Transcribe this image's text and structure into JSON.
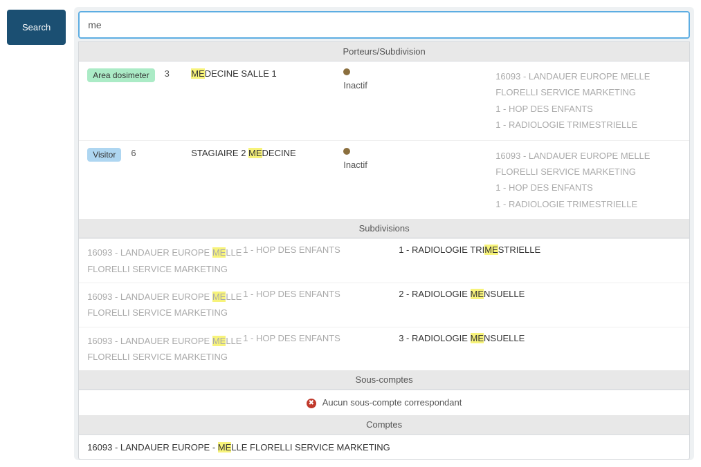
{
  "search": {
    "button_label": "Search",
    "input_value": "me"
  },
  "sections": {
    "porteurs_header": "Porteurs/Subdivision",
    "subdivisions_header": "Subdivisions",
    "souscomptes_header": "Sous-comptes",
    "comptes_header": "Comptes"
  },
  "porteurs": [
    {
      "badge_label": "Area dosimeter",
      "badge_class": "badge-green",
      "badge_num": "3",
      "name_parts": {
        "hl": "ME",
        "rest": "DECINE SALLE 1"
      },
      "status": "Inactif",
      "path": [
        "16093 - LANDAUER EUROPE MELLE FLORELLI SERVICE MARKETING",
        "1 - HOP DES ENFANTS",
        "1 - RADIOLOGIE TRIMESTRIELLE"
      ]
    },
    {
      "badge_label": "Visitor",
      "badge_class": "badge-blue",
      "badge_num": "6",
      "name_parts": {
        "pre": "STAGIAIRE 2 ",
        "hl": "ME",
        "rest": "DECINE"
      },
      "status": "Inactif",
      "path": [
        "16093 - LANDAUER EUROPE MELLE FLORELLI SERVICE MARKETING",
        "1 - HOP DES ENFANTS",
        "1 - RADIOLOGIE TRIMESTRIELLE"
      ]
    }
  ],
  "subdivisions": [
    {
      "col1": {
        "pre": "16093 - LANDAUER EUROPE ",
        "hl": "ME",
        "rest": "LLE FLORELLI SERVICE MARKETING"
      },
      "col2": "1 - HOP DES ENFANTS",
      "col3": {
        "pre": "1 - RADIOLOGIE TRI",
        "hl": "ME",
        "rest": "STRIELLE"
      }
    },
    {
      "col1": {
        "pre": "16093 - LANDAUER EUROPE ",
        "hl": "ME",
        "rest": "LLE FLORELLI SERVICE MARKETING"
      },
      "col2": "1 - HOP DES ENFANTS",
      "col3": {
        "pre": "2 - RADIOLOGIE ",
        "hl": "ME",
        "rest": "NSUELLE"
      }
    },
    {
      "col1": {
        "pre": "16093 - LANDAUER EUROPE ",
        "hl": "ME",
        "rest": "LLE FLORELLI SERVICE MARKETING"
      },
      "col2": "1 - HOP DES ENFANTS",
      "col3": {
        "pre": "3 - RADIOLOGIE ",
        "hl": "ME",
        "rest": "NSUELLE"
      }
    }
  ],
  "souscomptes_empty": "Aucun sous-compte correspondant",
  "comptes": [
    {
      "pre": "16093 - LANDAUER EUROPE - ",
      "hl": "ME",
      "rest": "LLE FLORELLI SERVICE MARKETING"
    }
  ],
  "colors": {
    "search_btn_bg": "#1b4f72",
    "input_border": "#5dade2",
    "highlight_bg": "#f7f37a",
    "muted_text": "#aaaaaa",
    "status_dot": "#8b6f3e",
    "error_icon": "#c0392b"
  }
}
